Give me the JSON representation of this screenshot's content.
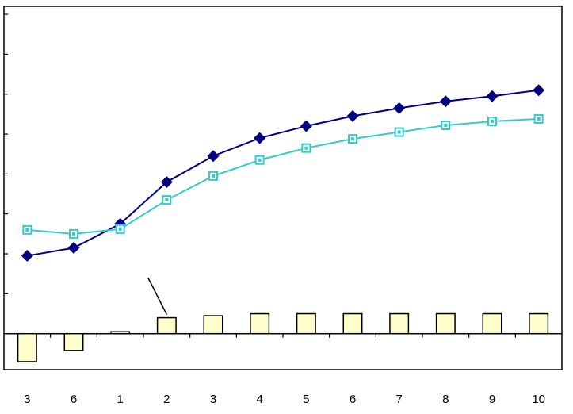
{
  "chart_data": {
    "type": "line",
    "categories": [
      "3",
      "6",
      "1",
      "2",
      "3",
      "4",
      "5",
      "6",
      "7",
      "8",
      "9",
      "10"
    ],
    "ylim": [
      -0.9,
      8.2
    ],
    "grid": false,
    "series": [
      {
        "type": "line",
        "marker": "diamond",
        "color": "#000080",
        "values": [
          1.95,
          2.15,
          2.75,
          3.8,
          4.45,
          4.9,
          5.2,
          5.45,
          5.65,
          5.82,
          5.95,
          6.1
        ]
      },
      {
        "type": "line",
        "marker": "square",
        "color": "#33CCCC",
        "values": [
          2.6,
          2.5,
          2.62,
          3.35,
          3.95,
          4.35,
          4.65,
          4.88,
          5.05,
          5.22,
          5.32,
          5.38
        ]
      },
      {
        "type": "bar",
        "color": "#FFFFCC",
        "edge_color": "#000000",
        "values": [
          -0.7,
          -0.42,
          0.05,
          0.4,
          0.45,
          0.5,
          0.5,
          0.5,
          0.5,
          0.5,
          0.5,
          0.5
        ]
      }
    ],
    "annotation_line": {
      "from": [
        3.6,
        1.4
      ],
      "to": [
        4.0,
        0.48
      ]
    }
  }
}
